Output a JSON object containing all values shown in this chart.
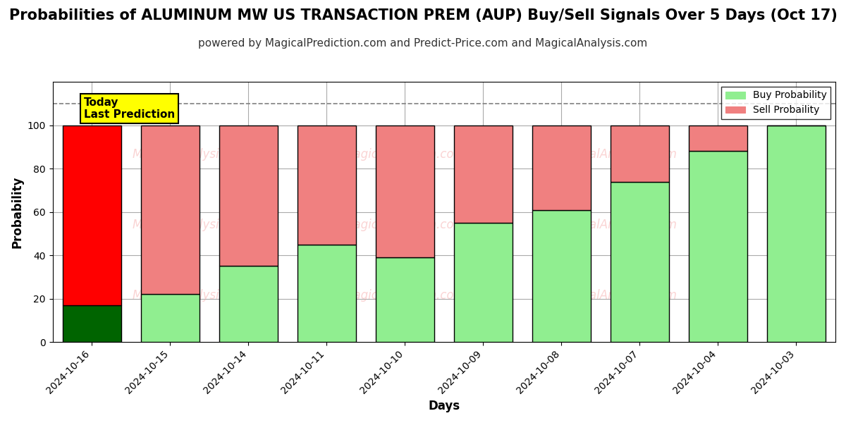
{
  "title": "Probabilities of ALUMINUM MW US TRANSACTION PREM (AUP) Buy/Sell Signals Over 5 Days (Oct 17)",
  "subtitle": "powered by MagicalPrediction.com and Predict-Price.com and MagicalAnalysis.com",
  "xlabel": "Days",
  "ylabel": "Probability",
  "dates": [
    "2024-10-16",
    "2024-10-15",
    "2024-10-14",
    "2024-10-11",
    "2024-10-10",
    "2024-10-09",
    "2024-10-08",
    "2024-10-07",
    "2024-10-04",
    "2024-10-03"
  ],
  "buy_values": [
    17,
    22,
    35,
    45,
    39,
    55,
    61,
    74,
    88,
    100
  ],
  "sell_values": [
    83,
    78,
    65,
    55,
    61,
    45,
    39,
    26,
    12,
    0
  ],
  "today_bar_index": 0,
  "buy_color_today": "#006400",
  "sell_color_today": "#ff0000",
  "buy_color_normal": "#90EE90",
  "sell_color_normal": "#F08080",
  "bar_edge_color": "#000000",
  "bar_edge_width": 1.0,
  "today_label_text": "Today\nLast Prediction",
  "today_label_bg": "#ffff00",
  "legend_buy_label": "Buy Probability",
  "legend_sell_label": "Sell Probaility",
  "ylim": [
    0,
    120
  ],
  "yticks": [
    0,
    20,
    40,
    60,
    80,
    100
  ],
  "dashed_line_y": 110,
  "grid_color": "#aaaaaa",
  "background_color": "#ffffff",
  "watermark_color": "#f5a0a0",
  "watermark_alpha": 0.45,
  "title_fontsize": 15,
  "subtitle_fontsize": 11,
  "axis_label_fontsize": 12,
  "tick_fontsize": 10,
  "bar_width": 0.75
}
